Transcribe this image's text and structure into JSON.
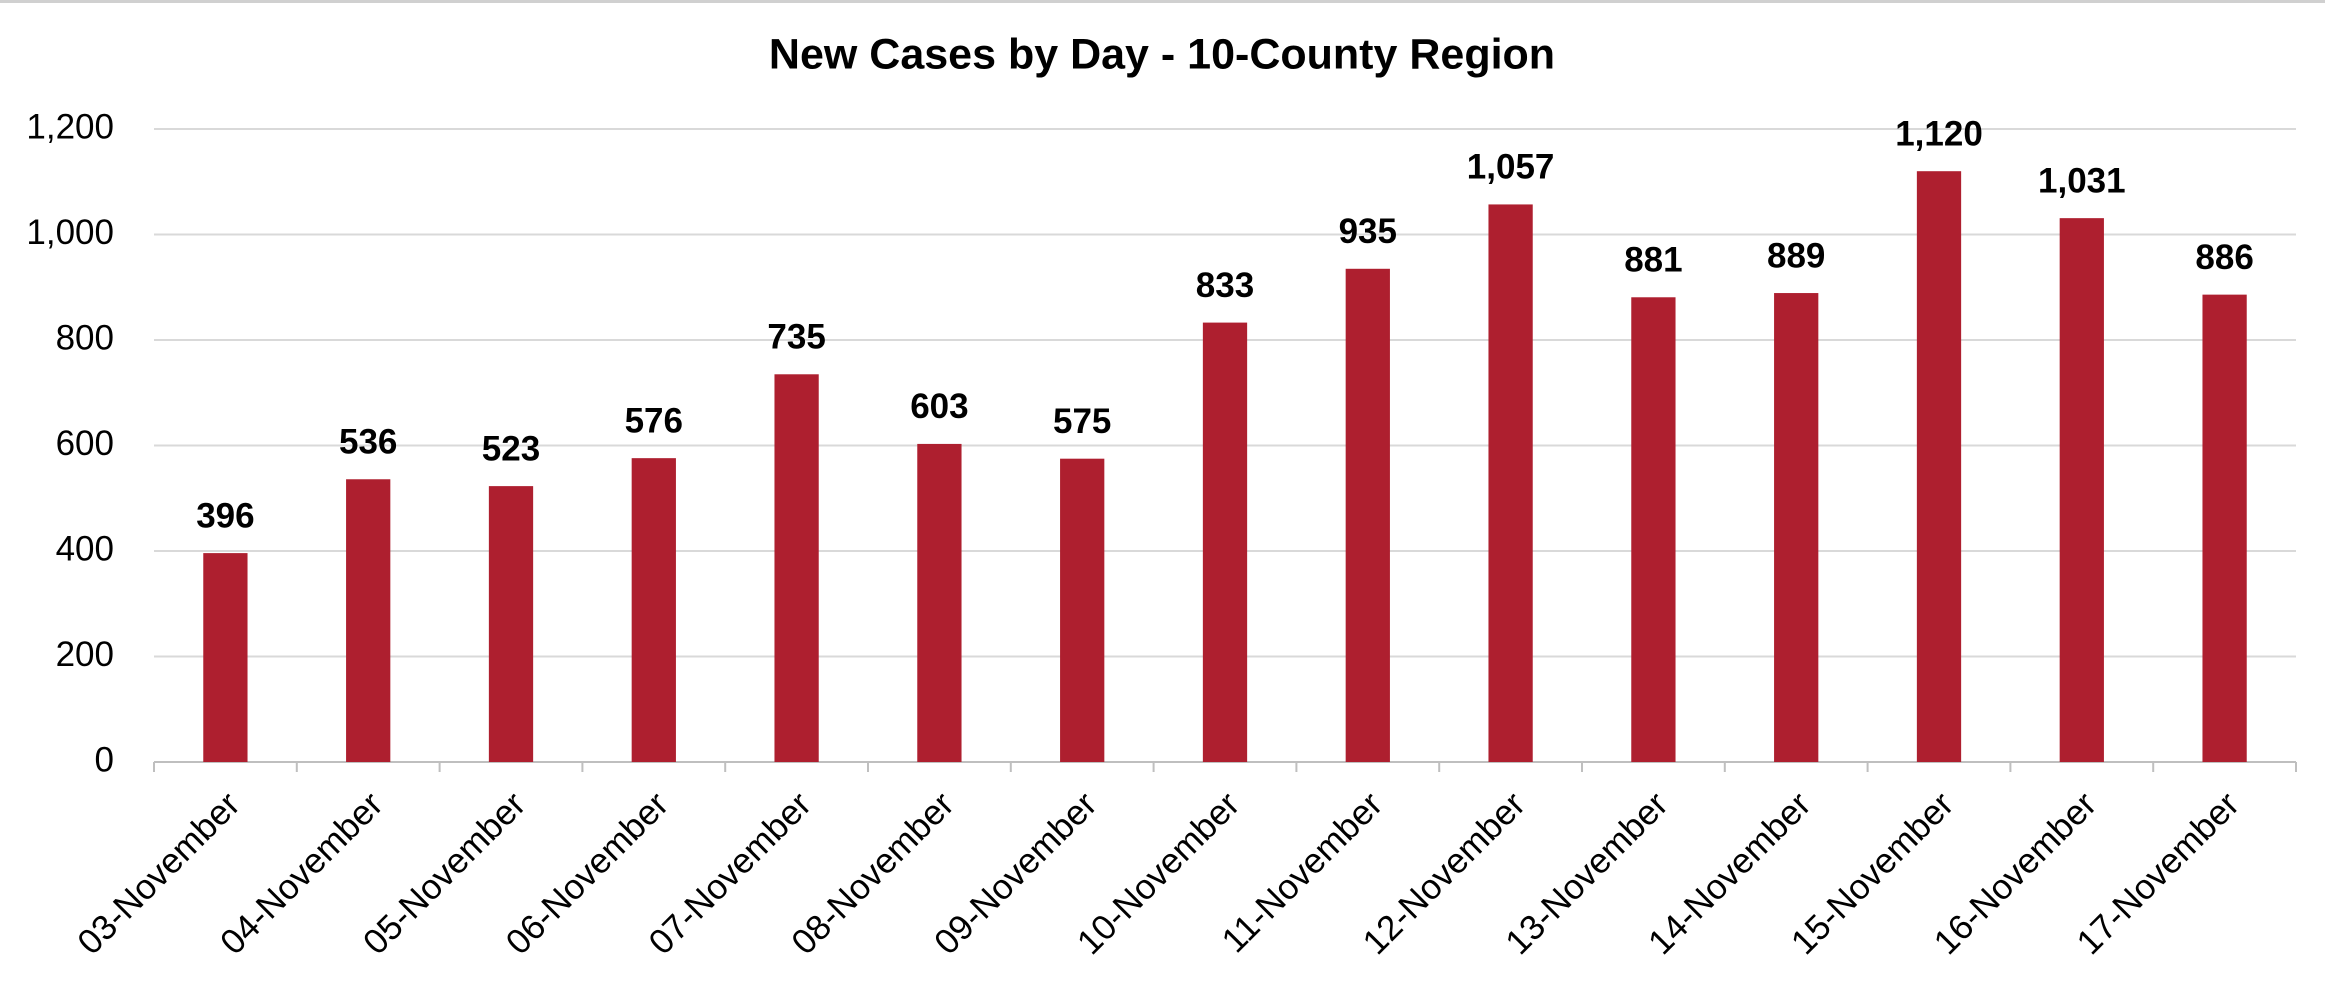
{
  "chart_data": {
    "type": "bar",
    "title": "New Cases by Day - 10-County Region",
    "categories": [
      "03-November",
      "04-November",
      "05-November",
      "06-November",
      "07-November",
      "08-November",
      "09-November",
      "10-November",
      "11-November",
      "12-November",
      "13-November",
      "14-November",
      "15-November",
      "16-November",
      "17-November"
    ],
    "values": [
      396,
      536,
      523,
      576,
      735,
      603,
      575,
      833,
      935,
      1057,
      881,
      889,
      1120,
      1031,
      886
    ],
    "value_labels": [
      "396",
      "536",
      "523",
      "576",
      "735",
      "603",
      "575",
      "833",
      "935",
      "1,057",
      "881",
      "889",
      "1,120",
      "1,031",
      "886"
    ],
    "color": "#ae1f2f",
    "ylim": [
      0,
      1200
    ],
    "yticks": [
      0,
      200,
      400,
      600,
      800,
      {
        "value": 1000,
        "label": "1,000"
      },
      {
        "value": 1200,
        "label": "1,200"
      }
    ],
    "grid": true
  }
}
